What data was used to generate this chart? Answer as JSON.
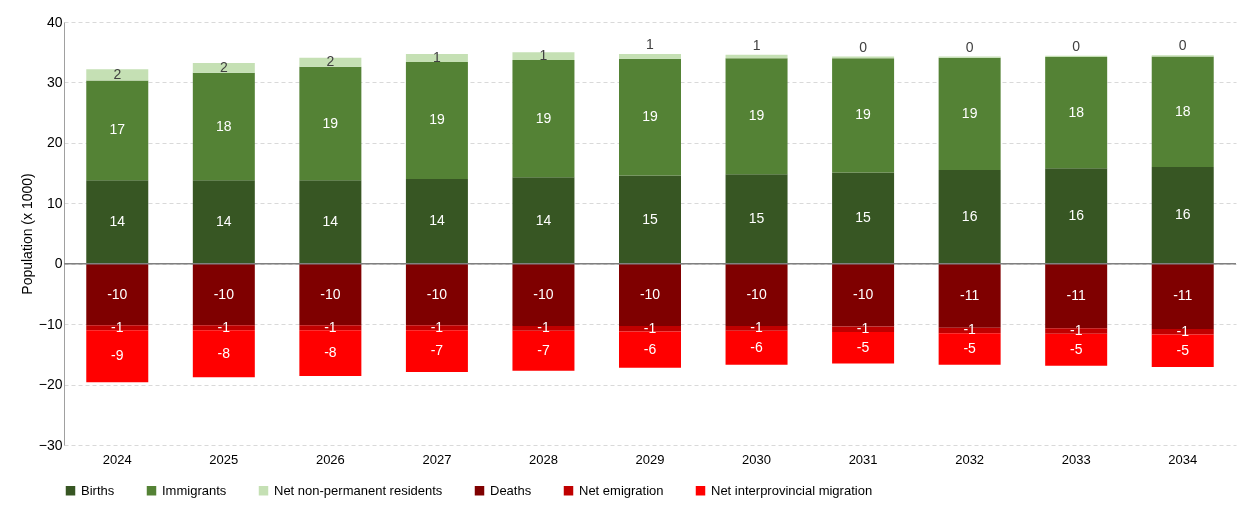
{
  "chart_data": {
    "type": "bar",
    "stacked": true,
    "ylabel": "Population (x 1000)",
    "categories": [
      "2024",
      "2025",
      "2026",
      "2027",
      "2028",
      "2029",
      "2030",
      "2031",
      "2032",
      "2033",
      "2034"
    ],
    "ylim": [
      -30,
      40
    ],
    "yticks": [
      -30,
      -20,
      -10,
      0,
      10,
      20,
      30,
      40
    ],
    "grid": "y",
    "legend": "bottom",
    "series": [
      {
        "name": "Births",
        "color": "#375623",
        "values": [
          13.8,
          13.8,
          13.8,
          14.0,
          14.3,
          14.6,
          14.8,
          15.1,
          15.5,
          15.8,
          16.0
        ],
        "value_labels": [
          "14",
          "14",
          "14",
          "14",
          "14",
          "15",
          "15",
          "15",
          "16",
          "16",
          "16"
        ]
      },
      {
        "name": "Immigrants",
        "color": "#548235",
        "values": [
          16.5,
          17.8,
          18.8,
          19.4,
          19.4,
          19.3,
          19.2,
          18.9,
          18.6,
          18.4,
          18.3
        ],
        "value_labels": [
          "17",
          "18",
          "19",
          "19",
          "19",
          "19",
          "19",
          "19",
          "19",
          "18",
          "18"
        ]
      },
      {
        "name": "Net non-permanent residents",
        "color": "#c5e0b4",
        "values": [
          1.9,
          1.6,
          1.5,
          1.3,
          1.3,
          0.8,
          0.6,
          0.3,
          0.2,
          0.2,
          0.2
        ],
        "value_labels": [
          "2",
          "2",
          "2",
          "1",
          "1",
          "1",
          "1",
          "0",
          "0",
          "0",
          "0"
        ]
      },
      {
        "name": "Deaths",
        "color": "#7f0000",
        "values": [
          -10.2,
          -10.2,
          -10.2,
          -10.2,
          -10.3,
          -10.3,
          -10.3,
          -10.4,
          -10.6,
          -10.7,
          -10.8
        ],
        "value_labels": [
          "-10",
          "-10",
          "-10",
          "-10",
          "-10",
          "-10",
          "-10",
          "-10",
          "-11",
          "-11",
          "-11"
        ]
      },
      {
        "name": "Net emigration",
        "color": "#c00000",
        "values": [
          -0.8,
          -0.8,
          -0.8,
          -0.8,
          -0.8,
          -0.9,
          -0.8,
          -0.9,
          -0.9,
          -0.9,
          -0.9
        ],
        "value_labels": [
          "-1",
          "-1",
          "-1",
          "-1",
          "-1",
          "-1",
          "-1",
          "-1",
          "-1",
          "-1",
          "-1"
        ]
      },
      {
        "name": "Net interprovincial migration",
        "color": "#ff0000",
        "values": [
          -8.6,
          -7.8,
          -7.6,
          -6.9,
          -6.6,
          -6.0,
          -5.6,
          -5.2,
          -5.2,
          -5.3,
          -5.4
        ],
        "value_labels": [
          "-9",
          "-8",
          "-8",
          "-7",
          "-7",
          "-6",
          "-6",
          "-5",
          "-5",
          "-5",
          "-5"
        ]
      }
    ]
  }
}
